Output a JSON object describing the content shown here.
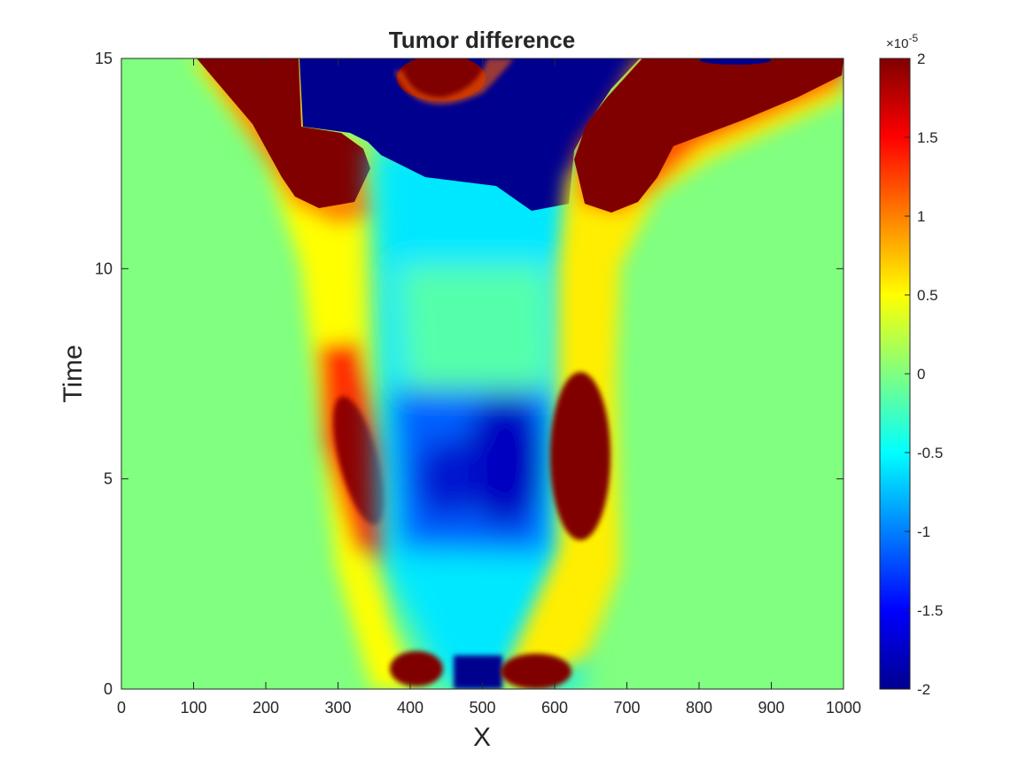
{
  "chart_data": {
    "type": "heatmap",
    "title": "Tumor difference",
    "xlabel": "X",
    "ylabel": "Time",
    "xlim": [
      0,
      1000
    ],
    "ylim": [
      0,
      15
    ],
    "x_ticks": [
      "0",
      "100",
      "200",
      "300",
      "400",
      "500",
      "600",
      "700",
      "800",
      "900",
      "1000"
    ],
    "y_ticks": [
      "0",
      "5",
      "10",
      "15"
    ],
    "colorbar": {
      "colormap": "jet",
      "clim": [
        -2,
        2
      ],
      "multiplier_base": "×10",
      "multiplier_exponent": "-5",
      "tick_labels": [
        "2",
        "1.5",
        "1",
        "0.5",
        "0",
        "-0.5",
        "-1",
        "-1.5",
        "-2"
      ]
    },
    "regions": [
      {
        "kind": "outer_left_rim",
        "description_values": "positive"
      },
      {
        "kind": "core",
        "description_values": "negative"
      },
      {
        "kind": "outer_right_rim",
        "description_values": "positive"
      }
    ]
  }
}
